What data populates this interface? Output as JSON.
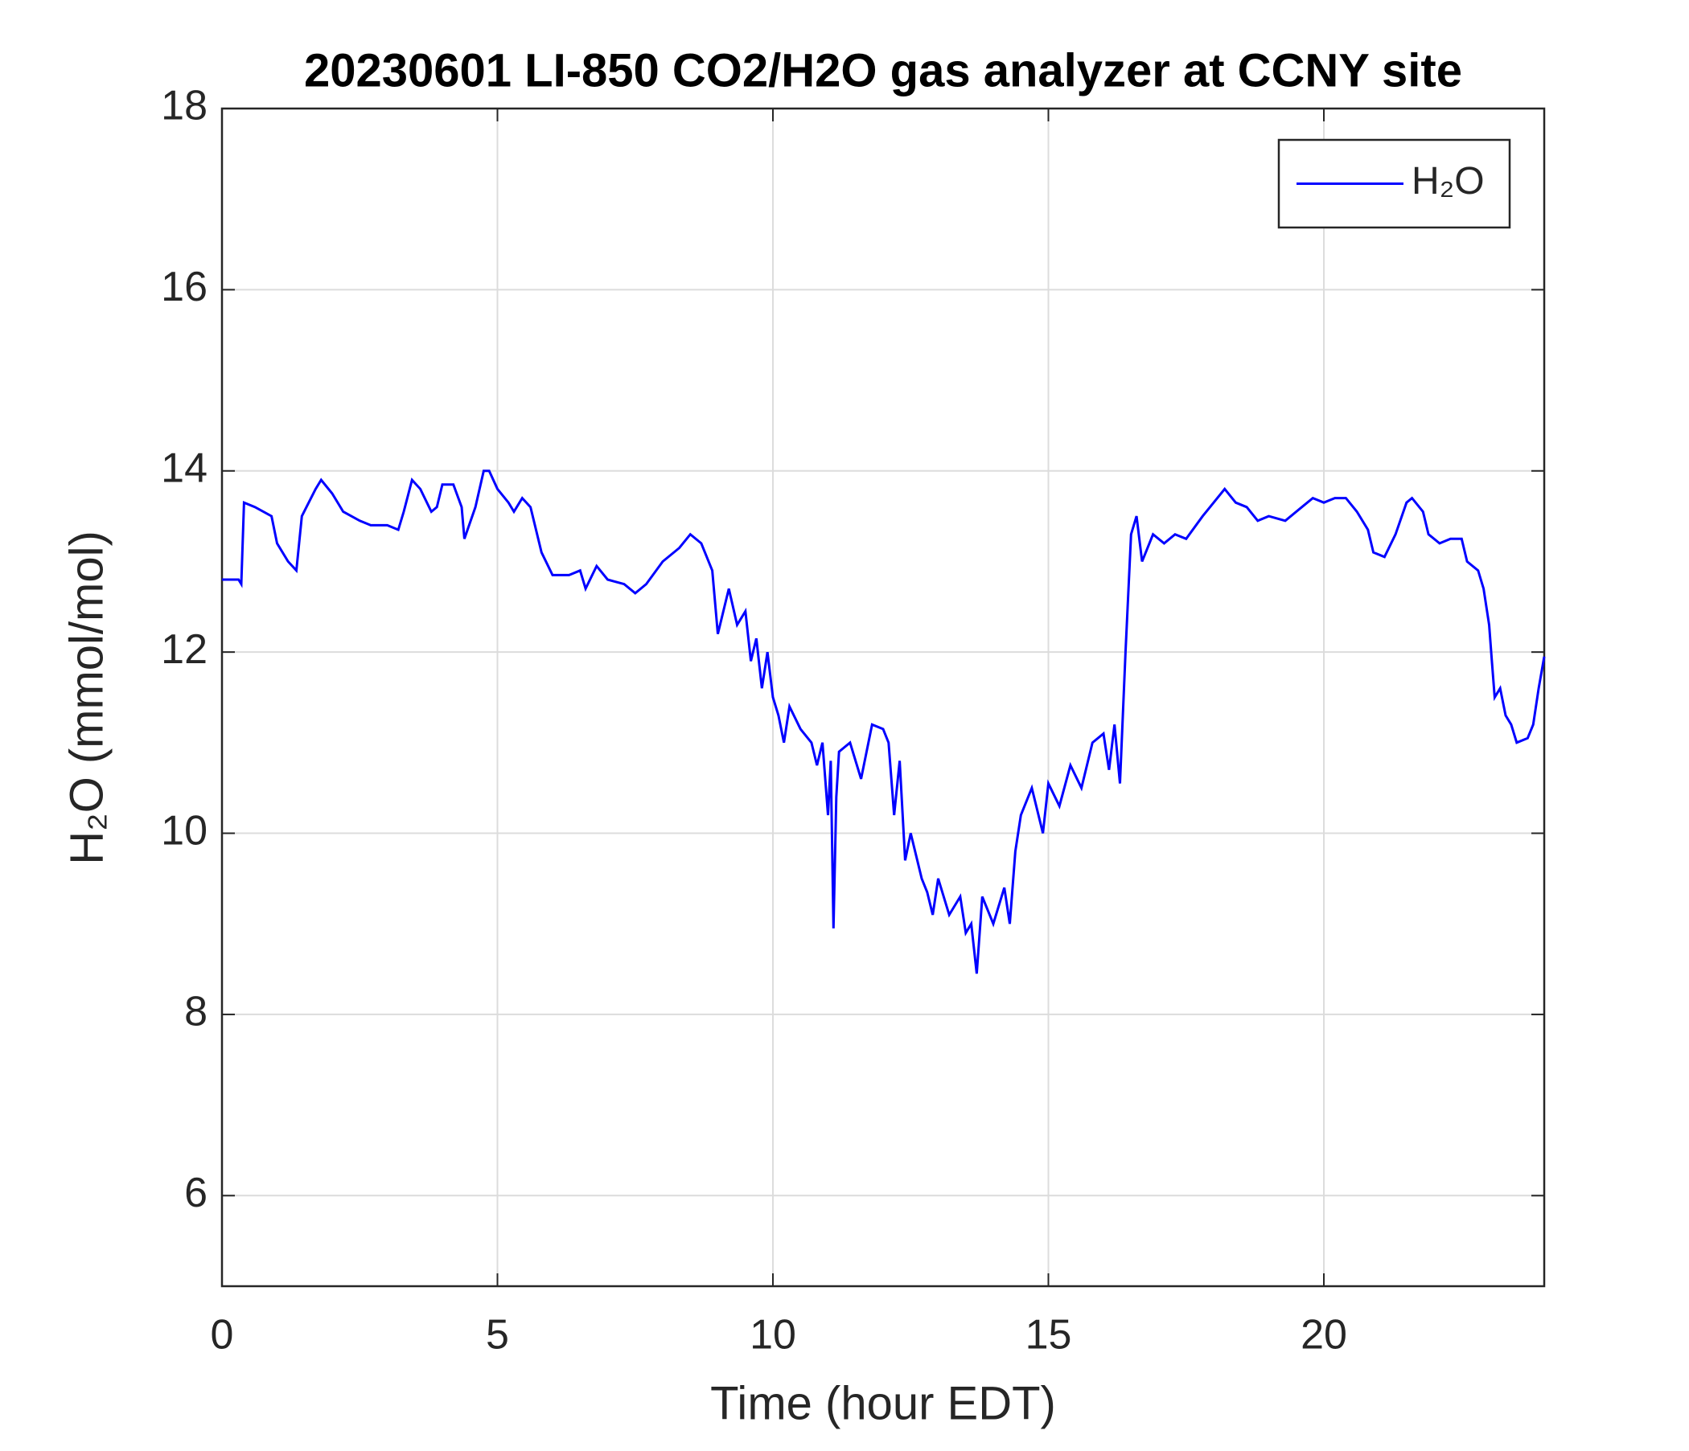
{
  "chart_data": {
    "type": "line",
    "title": "20230601 LI-850 CO2/H2O gas analyzer at CCNY site",
    "x_label": "Time (hour EDT)",
    "y_label": "H₂O (mmol/mol)",
    "xlim": [
      0,
      24
    ],
    "xticks": [
      0,
      5,
      10,
      15,
      20
    ],
    "ylim": [
      5,
      18
    ],
    "yticks": [
      6,
      8,
      10,
      12,
      14,
      16,
      18
    ],
    "grid": true,
    "legend": "upper right",
    "x": [
      0,
      0.3,
      0.35,
      0.4,
      0.6,
      0.9,
      1.0,
      1.2,
      1.35,
      1.45,
      1.7,
      1.8,
      2.0,
      2.2,
      2.5,
      2.7,
      3.0,
      3.2,
      3.3,
      3.45,
      3.6,
      3.8,
      3.9,
      4.0,
      4.2,
      4.35,
      4.4,
      4.6,
      4.75,
      4.85,
      5.0,
      5.2,
      5.3,
      5.45,
      5.6,
      5.8,
      6.0,
      6.3,
      6.5,
      6.6,
      6.8,
      7.0,
      7.3,
      7.5,
      7.7,
      8.0,
      8.3,
      8.5,
      8.7,
      8.9,
      9.0,
      9.2,
      9.35,
      9.5,
      9.6,
      9.7,
      9.8,
      9.9,
      10.0,
      10.1,
      10.2,
      10.3,
      10.5,
      10.7,
      10.8,
      10.9,
      11.0,
      11.05,
      11.1,
      11.15,
      11.2,
      11.4,
      11.6,
      11.8,
      12.0,
      12.1,
      12.2,
      12.3,
      12.4,
      12.5,
      12.7,
      12.8,
      12.9,
      13.0,
      13.2,
      13.4,
      13.5,
      13.6,
      13.7,
      13.8,
      14.0,
      14.2,
      14.3,
      14.4,
      14.5,
      14.7,
      14.9,
      15.0,
      15.2,
      15.4,
      15.6,
      15.8,
      16.0,
      16.1,
      16.2,
      16.3,
      16.4,
      16.5,
      16.6,
      16.7,
      16.9,
      17.1,
      17.3,
      17.5,
      17.8,
      18.0,
      18.2,
      18.4,
      18.6,
      18.8,
      19.0,
      19.3,
      19.6,
      19.8,
      20.0,
      20.2,
      20.4,
      20.6,
      20.8,
      20.9,
      21.1,
      21.3,
      21.5,
      21.6,
      21.8,
      21.9,
      22.1,
      22.3,
      22.5,
      22.6,
      22.8,
      22.9,
      23.0,
      23.05,
      23.1,
      23.2,
      23.3,
      23.4,
      23.5,
      23.7,
      23.8,
      23.9,
      24.0
    ],
    "series": [
      {
        "name": "H₂O",
        "color": "#0000ff",
        "values": [
          12.8,
          12.8,
          12.75,
          13.65,
          13.6,
          13.5,
          13.2,
          13.0,
          12.9,
          13.5,
          13.8,
          13.9,
          13.75,
          13.55,
          13.45,
          13.4,
          13.4,
          13.35,
          13.55,
          13.9,
          13.8,
          13.55,
          13.6,
          13.85,
          13.85,
          13.6,
          13.25,
          13.6,
          14.0,
          14.0,
          13.8,
          13.65,
          13.55,
          13.7,
          13.6,
          13.1,
          12.85,
          12.85,
          12.9,
          12.7,
          12.95,
          12.8,
          12.75,
          12.65,
          12.75,
          13.0,
          13.15,
          13.3,
          13.2,
          12.9,
          12.2,
          12.7,
          12.3,
          12.45,
          11.9,
          12.15,
          11.6,
          12.0,
          11.5,
          11.3,
          11.0,
          11.4,
          11.15,
          11.0,
          10.75,
          11.0,
          10.2,
          10.8,
          8.95,
          10.4,
          10.9,
          11.0,
          10.6,
          11.2,
          11.15,
          11.0,
          10.2,
          10.8,
          9.7,
          10.0,
          9.5,
          9.35,
          9.1,
          9.5,
          9.1,
          9.3,
          8.9,
          9.0,
          8.45,
          9.3,
          9.0,
          9.4,
          9.0,
          9.8,
          10.2,
          10.5,
          10.0,
          10.55,
          10.3,
          10.75,
          10.5,
          11.0,
          11.1,
          10.7,
          11.2,
          10.55,
          12.0,
          13.3,
          13.5,
          13.0,
          13.3,
          13.2,
          13.3,
          13.25,
          13.5,
          13.65,
          13.8,
          13.65,
          13.6,
          13.45,
          13.5,
          13.45,
          13.6,
          13.7,
          13.65,
          13.7,
          13.7,
          13.55,
          13.35,
          13.1,
          13.05,
          13.3,
          13.65,
          13.7,
          13.55,
          13.3,
          13.2,
          13.25,
          13.25,
          13.0,
          12.9,
          12.7,
          12.3,
          11.9,
          11.5,
          11.6,
          11.3,
          11.2,
          11.0,
          11.05,
          11.2,
          11.6,
          11.95
        ]
      }
    ]
  }
}
